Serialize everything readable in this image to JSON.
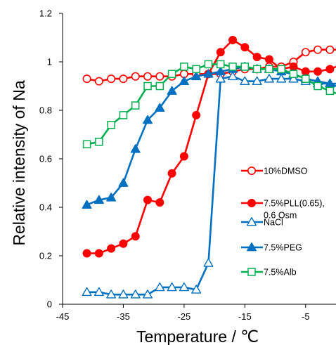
{
  "chart_data": {
    "type": "line",
    "xlabel": "Temperature  /  ℃",
    "ylabel": "Relative intensity of Na",
    "xlim": [
      -45,
      0
    ],
    "ylim": [
      0,
      1.2
    ],
    "x_ticks": [
      "-45",
      "-35",
      "-25",
      "-15",
      "-5"
    ],
    "y_ticks": [
      "0",
      "0.2",
      "0.4",
      "0.6",
      "0.8",
      "1",
      "1.2"
    ],
    "grid": false,
    "legend_position": "right",
    "series": [
      {
        "name": "10%DMSO",
        "color": "#ff0000",
        "marker": "circle-open",
        "points": [
          [
            -41,
            0.93
          ],
          [
            -39,
            0.92
          ],
          [
            -37,
            0.93
          ],
          [
            -35,
            0.93
          ],
          [
            -33,
            0.94
          ],
          [
            -31,
            0.94
          ],
          [
            -29,
            0.94
          ],
          [
            -27,
            0.94
          ],
          [
            -25,
            0.95
          ],
          [
            -23,
            0.95
          ],
          [
            -21,
            0.95
          ],
          [
            -19,
            0.95
          ],
          [
            -17,
            0.96
          ],
          [
            -15,
            0.97
          ],
          [
            -13,
            0.97
          ],
          [
            -11,
            0.98
          ],
          [
            -9,
            0.98
          ],
          [
            -7,
            1.0
          ],
          [
            -5,
            1.04
          ],
          [
            -3,
            1.05
          ],
          [
            -1,
            1.05
          ],
          [
            0,
            1.05
          ]
        ]
      },
      {
        "name": "7.5%PLL(0.65),\n0.6 Osm",
        "color": "#ff0000",
        "marker": "circle-filled",
        "points": [
          [
            -41,
            0.21
          ],
          [
            -39,
            0.21
          ],
          [
            -37,
            0.23
          ],
          [
            -35,
            0.25
          ],
          [
            -33,
            0.28
          ],
          [
            -31,
            0.43
          ],
          [
            -29,
            0.42
          ],
          [
            -27,
            0.54
          ],
          [
            -25,
            0.61
          ],
          [
            -23,
            0.78
          ],
          [
            -21,
            0.95
          ],
          [
            -19,
            1.04
          ],
          [
            -17,
            1.09
          ],
          [
            -15,
            1.06
          ],
          [
            -13,
            1.02
          ],
          [
            -11,
            1.01
          ],
          [
            -9,
            0.97
          ],
          [
            -7,
            0.98
          ],
          [
            -5,
            0.96
          ],
          [
            -3,
            0.96
          ],
          [
            -1,
            0.97
          ],
          [
            0,
            0.98
          ]
        ]
      },
      {
        "name": "NaCl",
        "color": "#0070c0",
        "marker": "triangle-open",
        "points": [
          [
            -41,
            0.05
          ],
          [
            -39,
            0.05
          ],
          [
            -37,
            0.04
          ],
          [
            -35,
            0.04
          ],
          [
            -33,
            0.04
          ],
          [
            -31,
            0.04
          ],
          [
            -29,
            0.07
          ],
          [
            -27,
            0.07
          ],
          [
            -25,
            0.07
          ],
          [
            -23,
            0.06
          ],
          [
            -21,
            0.17
          ],
          [
            -19,
            0.93
          ],
          [
            -17,
            0.94
          ],
          [
            -15,
            0.92
          ],
          [
            -13,
            0.92
          ],
          [
            -11,
            0.93
          ],
          [
            -9,
            0.93
          ],
          [
            -7,
            0.93
          ],
          [
            -5,
            0.92
          ],
          [
            -3,
            0.91
          ],
          [
            -1,
            0.91
          ],
          [
            0,
            0.91
          ]
        ]
      },
      {
        "name": "7.5%PEG",
        "color": "#0070c0",
        "marker": "triangle-filled",
        "points": [
          [
            -41,
            0.41
          ],
          [
            -39,
            0.43
          ],
          [
            -37,
            0.44
          ],
          [
            -35,
            0.5
          ],
          [
            -33,
            0.64
          ],
          [
            -31,
            0.76
          ],
          [
            -29,
            0.81
          ],
          [
            -27,
            0.88
          ],
          [
            -25,
            0.92
          ],
          [
            -23,
            0.94
          ],
          [
            -21,
            0.95
          ],
          [
            -19,
            0.96
          ],
          [
            -17,
            0.97
          ],
          [
            -15,
            0.98
          ],
          [
            -13,
            0.97
          ],
          [
            -11,
            0.97
          ],
          [
            -9,
            0.96
          ],
          [
            -7,
            0.95
          ],
          [
            -5,
            0.93
          ],
          [
            -3,
            0.92
          ],
          [
            -1,
            0.91
          ],
          [
            0,
            0.9
          ]
        ]
      },
      {
        "name": "7.5%Alb",
        "color": "#00b050",
        "marker": "square-open",
        "points": [
          [
            -41,
            0.66
          ],
          [
            -39,
            0.67
          ],
          [
            -37,
            0.74
          ],
          [
            -35,
            0.78
          ],
          [
            -33,
            0.82
          ],
          [
            -31,
            0.9
          ],
          [
            -29,
            0.9
          ],
          [
            -27,
            0.95
          ],
          [
            -25,
            0.98
          ],
          [
            -23,
            0.97
          ],
          [
            -21,
            0.99
          ],
          [
            -19,
            0.99
          ],
          [
            -17,
            0.98
          ],
          [
            -15,
            0.98
          ],
          [
            -13,
            0.97
          ],
          [
            -11,
            0.97
          ],
          [
            -9,
            0.97
          ],
          [
            -7,
            0.95
          ],
          [
            -5,
            0.93
          ],
          [
            -3,
            0.9
          ],
          [
            -1,
            0.88
          ],
          [
            0,
            0.87
          ]
        ]
      }
    ]
  }
}
